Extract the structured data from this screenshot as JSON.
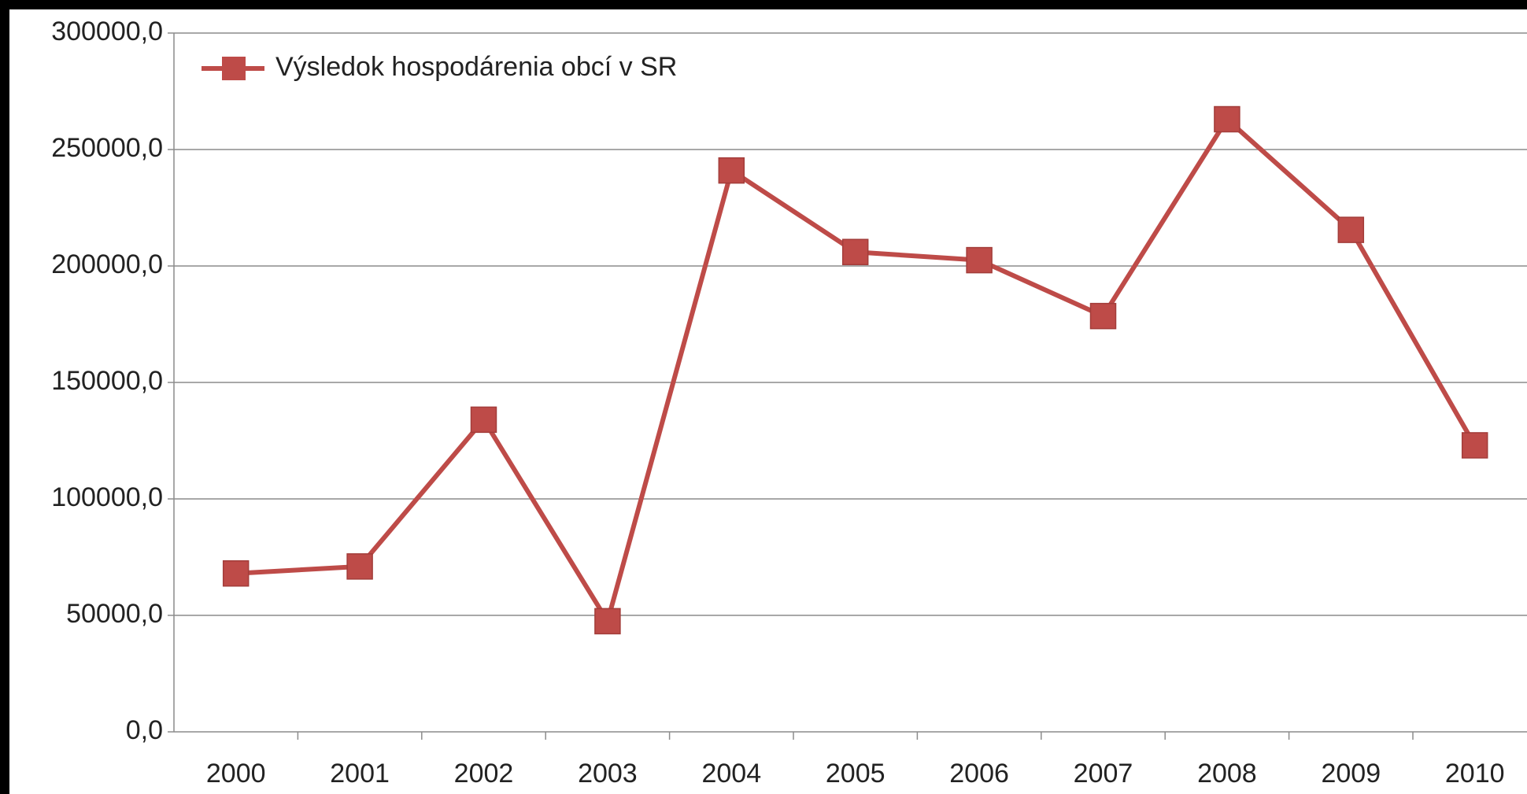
{
  "chart_data": {
    "type": "line",
    "categories": [
      "2000",
      "2001",
      "2002",
      "2003",
      "2004",
      "2005",
      "2006",
      "2007",
      "2008",
      "2009",
      "2010"
    ],
    "series": [
      {
        "name": "Výsledok hospodárenia obcí v SR",
        "color": "#be4b48",
        "values": [
          68000,
          71000,
          134000,
          47500,
          241000,
          206000,
          202500,
          178500,
          263000,
          215500,
          123000
        ]
      }
    ],
    "ylim": [
      0,
      300000
    ],
    "yticks": [
      {
        "value": 0,
        "label": "0,0"
      },
      {
        "value": 50000,
        "label": "50000,0"
      },
      {
        "value": 100000,
        "label": "100000,0"
      },
      {
        "value": 150000,
        "label": "150000,0"
      },
      {
        "value": 200000,
        "label": "200000,0"
      },
      {
        "value": 250000,
        "label": "250000,0"
      },
      {
        "value": 300000,
        "label": "300000,0"
      }
    ],
    "grid": true,
    "legend": "top-left"
  }
}
